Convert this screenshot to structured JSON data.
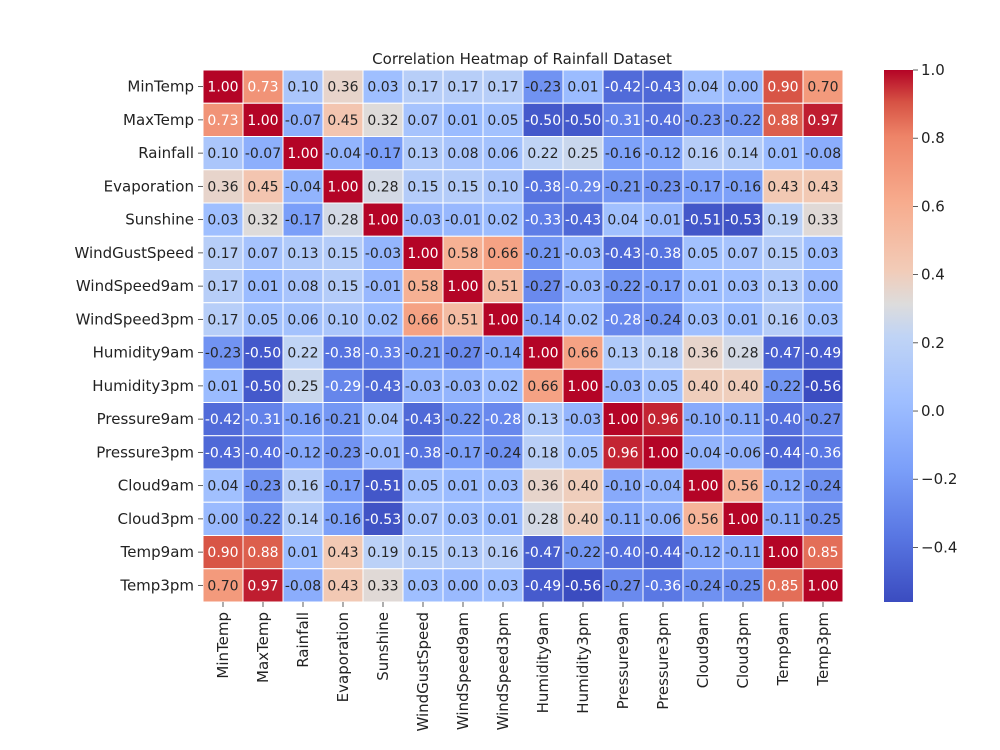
{
  "chart_data": {
    "type": "heatmap",
    "title": "Correlation Heatmap of Rainfall Dataset",
    "xlabel": "",
    "ylabel": "",
    "labels": [
      "MinTemp",
      "MaxTemp",
      "Rainfall",
      "Evaporation",
      "Sunshine",
      "WindGustSpeed",
      "WindSpeed9am",
      "WindSpeed3pm",
      "Humidity9am",
      "Humidity3pm",
      "Pressure9am",
      "Pressure3pm",
      "Cloud9am",
      "Cloud3pm",
      "Temp9am",
      "Temp3pm"
    ],
    "cell_text": [
      [
        "1.00",
        "0.73",
        "0.10",
        "0.36",
        "0.03",
        "0.17",
        "0.17",
        "0.17",
        "-0.23",
        "0.01",
        "-0.42",
        "-0.43",
        "0.04",
        "0.00",
        "0.90",
        "0.70"
      ],
      [
        "0.73",
        "1.00",
        "-0.07",
        "0.45",
        "0.32",
        "0.07",
        "0.01",
        "0.05",
        "-0.50",
        "-0.50",
        "-0.31",
        "-0.40",
        "-0.23",
        "-0.22",
        "0.88",
        "0.97"
      ],
      [
        "0.10",
        "-0.07",
        "1.00",
        "-0.04",
        "-0.17",
        "0.13",
        "0.08",
        "0.06",
        "0.22",
        "0.25",
        "-0.16",
        "-0.12",
        "0.16",
        "0.14",
        "0.01",
        "-0.08"
      ],
      [
        "0.36",
        "0.45",
        "-0.04",
        "1.00",
        "0.28",
        "0.15",
        "0.15",
        "0.10",
        "-0.38",
        "-0.29",
        "-0.21",
        "-0.23",
        "-0.17",
        "-0.16",
        "0.43",
        "0.43"
      ],
      [
        "0.03",
        "0.32",
        "-0.17",
        "0.28",
        "1.00",
        "-0.03",
        "-0.01",
        "0.02",
        "-0.33",
        "-0.43",
        "0.04",
        "-0.01",
        "-0.51",
        "-0.53",
        "0.19",
        "0.33"
      ],
      [
        "0.17",
        "0.07",
        "0.13",
        "0.15",
        "-0.03",
        "1.00",
        "0.58",
        "0.66",
        "-0.21",
        "-0.03",
        "-0.43",
        "-0.38",
        "0.05",
        "0.07",
        "0.15",
        "0.03"
      ],
      [
        "0.17",
        "0.01",
        "0.08",
        "0.15",
        "-0.01",
        "0.58",
        "1.00",
        "0.51",
        "-0.27",
        "-0.03",
        "-0.22",
        "-0.17",
        "0.01",
        "0.03",
        "0.13",
        "0.00"
      ],
      [
        "0.17",
        "0.05",
        "0.06",
        "0.10",
        "0.02",
        "0.66",
        "0.51",
        "1.00",
        "-0.14",
        "0.02",
        "-0.28",
        "-0.24",
        "0.03",
        "0.01",
        "0.16",
        "0.03"
      ],
      [
        "-0.23",
        "-0.50",
        "0.22",
        "-0.38",
        "-0.33",
        "-0.21",
        "-0.27",
        "-0.14",
        "1.00",
        "0.66",
        "0.13",
        "0.18",
        "0.36",
        "0.28",
        "-0.47",
        "-0.49"
      ],
      [
        "0.01",
        "-0.50",
        "0.25",
        "-0.29",
        "-0.43",
        "-0.03",
        "-0.03",
        "0.02",
        "0.66",
        "1.00",
        "-0.03",
        "0.05",
        "0.40",
        "0.40",
        "-0.22",
        "-0.56"
      ],
      [
        "-0.42",
        "-0.31",
        "-0.16",
        "-0.21",
        "0.04",
        "-0.43",
        "-0.22",
        "-0.28",
        "0.13",
        "-0.03",
        "1.00",
        "0.96",
        "-0.10",
        "-0.11",
        "-0.40",
        "-0.27"
      ],
      [
        "-0.43",
        "-0.40",
        "-0.12",
        "-0.23",
        "-0.01",
        "-0.38",
        "-0.17",
        "-0.24",
        "0.18",
        "0.05",
        "0.96",
        "1.00",
        "-0.04",
        "-0.06",
        "-0.44",
        "-0.36"
      ],
      [
        "0.04",
        "-0.23",
        "0.16",
        "-0.17",
        "-0.51",
        "0.05",
        "0.01",
        "0.03",
        "0.36",
        "0.40",
        "-0.10",
        "-0.04",
        "1.00",
        "0.56",
        "-0.12",
        "-0.24"
      ],
      [
        "0.00",
        "-0.22",
        "0.14",
        "-0.16",
        "-0.53",
        "0.07",
        "0.03",
        "0.01",
        "0.28",
        "0.40",
        "-0.11",
        "-0.06",
        "0.56",
        "1.00",
        "-0.11",
        "-0.25"
      ],
      [
        "0.90",
        "0.88",
        "0.01",
        "0.43",
        "0.19",
        "0.15",
        "0.13",
        "0.16",
        "-0.47",
        "-0.22",
        "-0.40",
        "-0.44",
        "-0.12",
        "-0.11",
        "1.00",
        "0.85"
      ],
      [
        "0.70",
        "0.97",
        "-0.08",
        "0.43",
        "0.33",
        "0.03",
        "0.00",
        "0.03",
        "-0.49",
        "-0.56",
        "-0.27",
        "-0.36",
        "-0.24",
        "-0.25",
        "0.85",
        "1.00"
      ]
    ],
    "colorscale": "coolwarm",
    "vmin": -0.56,
    "vmax": 1.0,
    "colorbar_ticks": [
      "1.0",
      "0.8",
      "0.6",
      "0.4",
      "0.2",
      "0.0",
      "−0.2",
      "−0.4"
    ],
    "colorbar_tick_values": [
      1.0,
      0.8,
      0.6,
      0.4,
      0.2,
      0.0,
      -0.2,
      -0.4
    ],
    "grid": true,
    "legend": "colorbar-right"
  }
}
